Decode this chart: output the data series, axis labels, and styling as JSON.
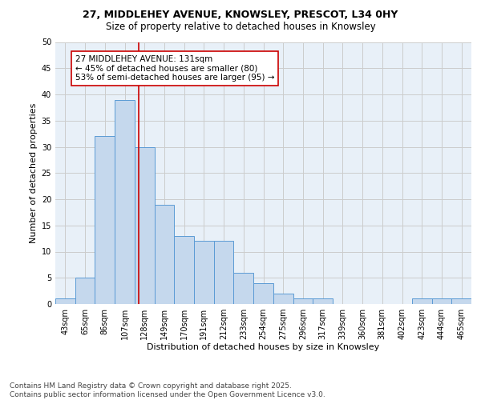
{
  "title": "27, MIDDLEHEY AVENUE, KNOWSLEY, PRESCOT, L34 0HY",
  "subtitle": "Size of property relative to detached houses in Knowsley",
  "xlabel": "Distribution of detached houses by size in Knowsley",
  "ylabel": "Number of detached properties",
  "bar_labels": [
    "43sqm",
    "65sqm",
    "86sqm",
    "107sqm",
    "128sqm",
    "149sqm",
    "170sqm",
    "191sqm",
    "212sqm",
    "233sqm",
    "254sqm",
    "275sqm",
    "296sqm",
    "317sqm",
    "339sqm",
    "360sqm",
    "381sqm",
    "402sqm",
    "423sqm",
    "444sqm",
    "465sqm"
  ],
  "bar_values": [
    1,
    5,
    32,
    39,
    30,
    19,
    13,
    12,
    12,
    6,
    4,
    2,
    1,
    1,
    0,
    0,
    0,
    0,
    1,
    1,
    1
  ],
  "bar_color": "#c5d8ed",
  "bar_edge_color": "#5b9bd5",
  "vline_x_index": 4,
  "vline_color": "#cc0000",
  "annotation_text": "27 MIDDLEHEY AVENUE: 131sqm\n← 45% of detached houses are smaller (80)\n53% of semi-detached houses are larger (95) →",
  "annotation_box_color": "#ffffff",
  "annotation_box_edge": "#cc0000",
  "ylim": [
    0,
    50
  ],
  "yticks": [
    0,
    5,
    10,
    15,
    20,
    25,
    30,
    35,
    40,
    45,
    50
  ],
  "grid_color": "#cccccc",
  "bg_color": "#e8f0f8",
  "footer_text": "Contains HM Land Registry data © Crown copyright and database right 2025.\nContains public sector information licensed under the Open Government Licence v3.0.",
  "title_fontsize": 9,
  "subtitle_fontsize": 8.5,
  "axis_label_fontsize": 8,
  "tick_fontsize": 7,
  "annotation_fontsize": 7.5,
  "footer_fontsize": 6.5
}
